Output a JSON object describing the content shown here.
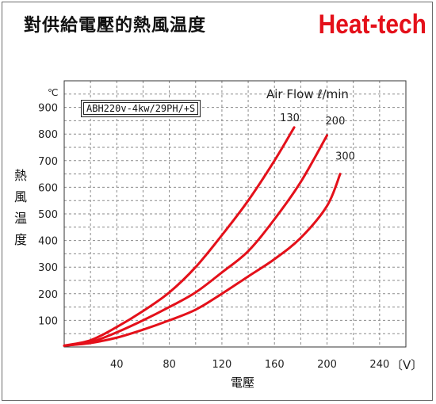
{
  "header": {
    "title": "對供給電壓的熱風温度",
    "brand": "Heat-tech"
  },
  "model": "ABH220v-4kw/29PH/+S",
  "colors": {
    "curve": "#e4101a",
    "brand": "#e4101a",
    "grid": "#8a8a8a"
  },
  "chart_data": {
    "type": "line",
    "xlabel": "電壓",
    "ylabel": "熱風温度",
    "x_unit": "〔V〕",
    "y_unit": "℃",
    "legend_title": "Air Flow ℓ/min",
    "xlim": [
      0,
      260
    ],
    "ylim": [
      0,
      1000
    ],
    "x_ticks": [
      40,
      80,
      120,
      160,
      200,
      240
    ],
    "y_ticks": [
      100,
      200,
      300,
      400,
      500,
      600,
      700,
      800,
      900
    ],
    "grid": true,
    "series": [
      {
        "name": "130",
        "x": [
          0,
          20,
          40,
          60,
          80,
          100,
          120,
          140,
          160,
          175
        ],
        "y": [
          5,
          25,
          75,
          135,
          205,
          300,
          420,
          550,
          700,
          825
        ]
      },
      {
        "name": "200",
        "x": [
          0,
          20,
          40,
          60,
          80,
          100,
          120,
          140,
          160,
          180,
          200
        ],
        "y": [
          5,
          18,
          55,
          100,
          150,
          205,
          280,
          360,
          480,
          620,
          795
        ]
      },
      {
        "name": "300",
        "x": [
          0,
          20,
          40,
          60,
          80,
          100,
          120,
          140,
          160,
          180,
          200,
          210
        ],
        "y": [
          5,
          15,
          35,
          65,
          100,
          140,
          200,
          265,
          330,
          410,
          530,
          650
        ]
      }
    ]
  }
}
